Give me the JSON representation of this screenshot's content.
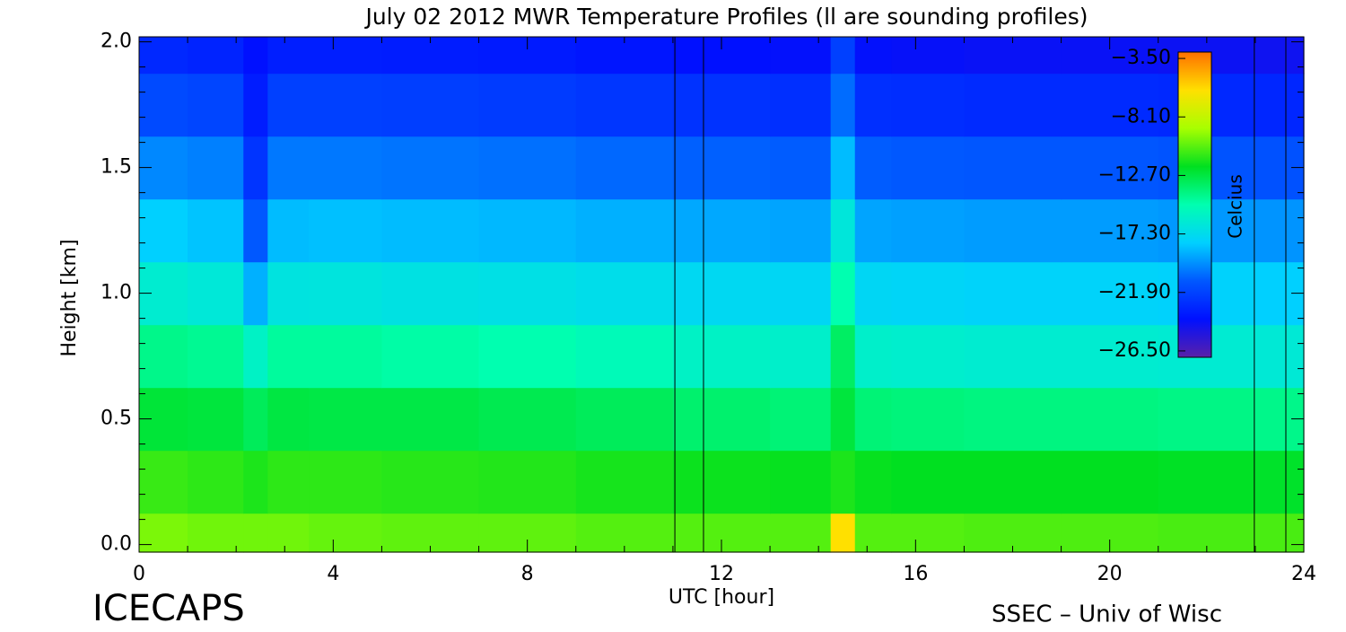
{
  "chart_data": {
    "type": "heatmap",
    "title": "July 02 2012 MWR Temperature Profiles (ll are sounding profiles)",
    "x_label": "UTC [hour]",
    "y_label": "Height [km]",
    "colorbar_label": "Celcius",
    "footer_left": "ICECAPS",
    "footer_right": "SSEC – Univ of Wisc",
    "xlim": [
      0,
      24
    ],
    "ylim": [
      -0.03,
      2.02
    ],
    "xticks": [
      0,
      4,
      8,
      12,
      16,
      20,
      24
    ],
    "yticks": [
      {
        "value": 0,
        "label": "0.0"
      },
      0.5,
      {
        "value": 1,
        "label": "1.0"
      },
      1.5,
      {
        "value": 2,
        "label": "2.0"
      }
    ],
    "xminorticks": [
      1,
      2,
      3,
      5,
      6,
      7,
      9,
      10,
      11,
      13,
      14,
      15,
      17,
      18,
      19,
      21,
      22,
      23
    ],
    "yminorticks": [
      0.1,
      0.2,
      0.3,
      0.4,
      0.6,
      0.7,
      0.8,
      0.9,
      1.1,
      1.2,
      1.3,
      1.4,
      1.6,
      1.7,
      1.8,
      1.9
    ],
    "x": [
      0,
      2,
      2.3,
      3,
      4,
      6,
      8,
      10,
      12,
      14,
      14.5,
      15,
      16,
      18,
      20,
      22,
      24
    ],
    "y": [
      0,
      0.25,
      0.5,
      0.75,
      1,
      1.25,
      1.5,
      1.75,
      2
    ],
    "z": [
      [
        -9.8,
        -10,
        -10,
        -10,
        -10.2,
        -10.3,
        -10.3,
        -10.5,
        -10.5,
        -10.5,
        -6,
        -10.5,
        -10.5,
        -10.6,
        -10.6,
        -10.7,
        -10.7
      ],
      [
        -11,
        -11.2,
        -11.5,
        -11.2,
        -11.2,
        -11.3,
        -11.4,
        -11.6,
        -11.8,
        -11.9,
        -11.5,
        -11.9,
        -12,
        -12,
        -12,
        -12.1,
        -12.2
      ],
      [
        -12.5,
        -12.6,
        -13.2,
        -12.7,
        -12.8,
        -12.8,
        -13,
        -13.2,
        -13.6,
        -13.8,
        -12.6,
        -13.8,
        -13.9,
        -14,
        -14,
        -14.1,
        -14.2
      ],
      [
        -14.2,
        -14.4,
        -15.8,
        -14.6,
        -14.6,
        -14.8,
        -15,
        -15.3,
        -15.8,
        -16,
        -13.4,
        -16,
        -16.1,
        -16.2,
        -16.2,
        -16.3,
        -16.4
      ],
      [
        -16.2,
        -16.5,
        -18.8,
        -16.8,
        -16.7,
        -16.9,
        -17,
        -17.2,
        -17.5,
        -17.6,
        -15,
        -17.6,
        -17.7,
        -17.8,
        -17.8,
        -17.9,
        -18
      ],
      [
        -18,
        -18.3,
        -21,
        -18.5,
        -18.4,
        -18.5,
        -18.6,
        -18.8,
        -19,
        -19.1,
        -16.6,
        -19.1,
        -19.2,
        -19.3,
        -19.3,
        -19.4,
        -19.5
      ],
      [
        -19.8,
        -20,
        -22.5,
        -20.2,
        -20.2,
        -20.3,
        -20.4,
        -20.6,
        -20.8,
        -20.9,
        -18.5,
        -20.9,
        -21,
        -21.1,
        -21.1,
        -21.2,
        -21.3
      ],
      [
        -21.6,
        -21.8,
        -23.5,
        -22,
        -22,
        -22.1,
        -22.2,
        -22.4,
        -22.6,
        -22.7,
        -20.5,
        -22.7,
        -22.8,
        -22.9,
        -22.9,
        -23,
        -23.1
      ],
      [
        -23,
        -23.2,
        -24,
        -23.4,
        -23.4,
        -23.5,
        -23.6,
        -23.8,
        -24,
        -24.1,
        -22,
        -24.1,
        -24.2,
        -24.3,
        -24.3,
        -24.4,
        -24.5
      ]
    ],
    "clim": [
      -27,
      -3
    ],
    "colors": [
      "#5a20a8",
      "#0010ff",
      "#0058ff",
      "#00d0ff",
      "#00ffb0",
      "#00e020",
      "#a8ff00",
      "#ffe000",
      "#ff7000"
    ],
    "colorbar_ticks": [
      {
        "value": -3.5,
        "label": "−3.50"
      },
      {
        "value": -8.1,
        "label": "−8.10"
      },
      {
        "value": -12.7,
        "label": "−12.70"
      },
      {
        "value": -17.3,
        "label": "−17.30"
      },
      {
        "value": -21.9,
        "label": "−21.90"
      },
      {
        "value": -26.5,
        "label": "−26.50"
      }
    ],
    "soundings": [
      [
        11.04,
        11.63
      ],
      [
        22.98,
        23.63
      ]
    ]
  }
}
